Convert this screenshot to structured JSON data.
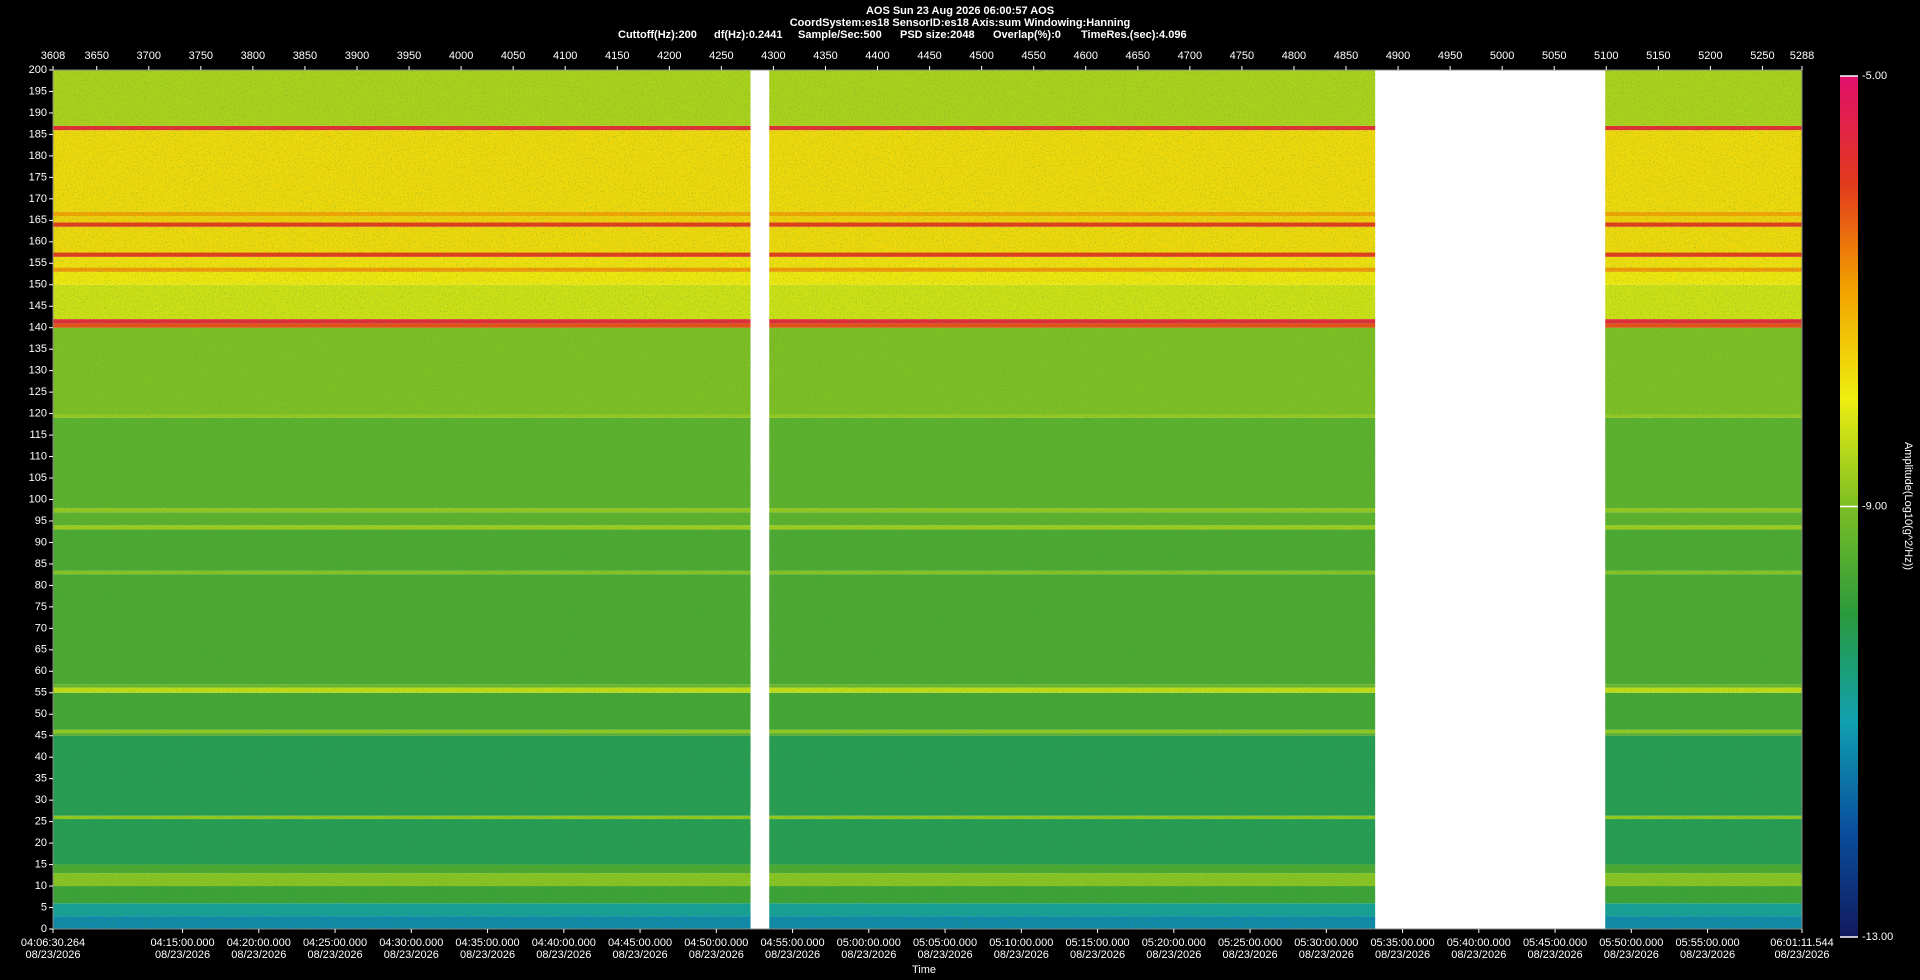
{
  "chart_data": {
    "type": "spectrogram",
    "title": "AOS  Sun 23 Aug 2026 06:00:57  AOS",
    "subtitle": "CoordSystem:es18   SensorID:es18    Axis:sum    Windowing:Hanning",
    "parameters": [
      "Cuttoff(Hz):200",
      "df(Hz):0.2441",
      "Sample/Sec:500",
      "PSD size:2048",
      "Overlap(%):0",
      "TimeRes.(sec):4.096"
    ],
    "x_label": "Time",
    "colorbar_label": "Amplitude(Log10(g^2/Hz))",
    "xlim": [
      3608,
      5288
    ],
    "top_ticks": [
      3608,
      3650,
      3700,
      3750,
      3800,
      3850,
      3900,
      3950,
      4000,
      4050,
      4100,
      4150,
      4200,
      4250,
      4300,
      4350,
      4400,
      4450,
      4500,
      4550,
      4600,
      4650,
      4700,
      4750,
      4800,
      4850,
      4900,
      4950,
      5000,
      5050,
      5100,
      5150,
      5200,
      5250,
      5288
    ],
    "time_ticks": [
      {
        "value": 3608,
        "label": "04:06:30.264",
        "date": "08/23/2026"
      },
      {
        "value": 3732.45,
        "label": "04:15:00.000",
        "date": "08/23/2026"
      },
      {
        "value": 3805.69,
        "label": "04:20:00.000",
        "date": "08/23/2026"
      },
      {
        "value": 3878.93,
        "label": "04:25:00.000",
        "date": "08/23/2026"
      },
      {
        "value": 3952.17,
        "label": "04:30:00.000",
        "date": "08/23/2026"
      },
      {
        "value": 4025.41,
        "label": "04:35:00.000",
        "date": "08/23/2026"
      },
      {
        "value": 4098.66,
        "label": "04:40:00.000",
        "date": "08/23/2026"
      },
      {
        "value": 4171.9,
        "label": "04:45:00.000",
        "date": "08/23/2026"
      },
      {
        "value": 4245.14,
        "label": "04:50:00.000",
        "date": "08/23/2026"
      },
      {
        "value": 4318.38,
        "label": "04:55:00.000",
        "date": "08/23/2026"
      },
      {
        "value": 4391.62,
        "label": "05:00:00.000",
        "date": "08/23/2026"
      },
      {
        "value": 4464.87,
        "label": "05:05:00.000",
        "date": "08/23/2026"
      },
      {
        "value": 4538.11,
        "label": "05:10:00.000",
        "date": "08/23/2026"
      },
      {
        "value": 4611.35,
        "label": "05:15:00.000",
        "date": "08/23/2026"
      },
      {
        "value": 4684.59,
        "label": "05:20:00.000",
        "date": "08/23/2026"
      },
      {
        "value": 4757.83,
        "label": "05:25:00.000",
        "date": "08/23/2026"
      },
      {
        "value": 4831.08,
        "label": "05:30:00.000",
        "date": "08/23/2026"
      },
      {
        "value": 4904.32,
        "label": "05:35:00.000",
        "date": "08/23/2026"
      },
      {
        "value": 4977.56,
        "label": "05:40:00.000",
        "date": "08/23/2026"
      },
      {
        "value": 5050.8,
        "label": "05:45:00.000",
        "date": "08/23/2026"
      },
      {
        "value": 5124.04,
        "label": "05:50:00.000",
        "date": "08/23/2026"
      },
      {
        "value": 5197.29,
        "label": "05:55:00.000",
        "date": "08/23/2026"
      },
      {
        "value": 5288,
        "label": "06:01:11.544",
        "date": "08/23/2026"
      }
    ],
    "ylim": [
      0,
      200
    ],
    "yticks": [
      0,
      5,
      10,
      15,
      20,
      25,
      30,
      35,
      40,
      45,
      50,
      55,
      60,
      65,
      70,
      75,
      80,
      85,
      90,
      95,
      100,
      105,
      110,
      115,
      120,
      125,
      130,
      135,
      140,
      145,
      150,
      155,
      160,
      165,
      170,
      175,
      180,
      185,
      190,
      195,
      200
    ],
    "segments": [
      [
        3608,
        4278
      ],
      [
        4296,
        4878
      ],
      [
        5099,
        5288
      ]
    ],
    "freq_bins": [
      0,
      3,
      6,
      10,
      13,
      15,
      25.6,
      26.4,
      45,
      45.6,
      46.4,
      55,
      56.2,
      57,
      82.6,
      83.4,
      93,
      94,
      97,
      98,
      119,
      119.8,
      140,
      141,
      142,
      150,
      153,
      154,
      156.5,
      157.5,
      163.5,
      164.5,
      166,
      167,
      186,
      187,
      200
    ],
    "amplitude": [
      -11.3,
      -10.8,
      -9.8,
      -8.9,
      -9.6,
      -10.2,
      -8.8,
      -10.2,
      -9.5,
      -8.8,
      -9.7,
      -8.4,
      -9.2,
      -9.6,
      -8.9,
      -9.6,
      -8.7,
      -9.4,
      -8.8,
      -9.4,
      -8.8,
      -9.0,
      -6.2,
      -5.6,
      -8.3,
      -7.9,
      -6.9,
      -7.8,
      -6.0,
      -7.7,
      -6.0,
      -7.6,
      -7.0,
      -7.7,
      -5.7,
      -8.6
    ],
    "clim": [
      -13,
      -5
    ],
    "cticks": [
      {
        "value": -5,
        "label": "-5.00"
      },
      {
        "value": -9,
        "label": "-9.00"
      },
      {
        "value": -13,
        "label": "-13.00"
      }
    ],
    "colormap": [
      "#121a5e",
      "#0a4f9e",
      "#10a0b0",
      "#2a9a3c",
      "#7cbe24",
      "#eeee10",
      "#f2a400",
      "#e23a1c",
      "#e0106c"
    ]
  }
}
